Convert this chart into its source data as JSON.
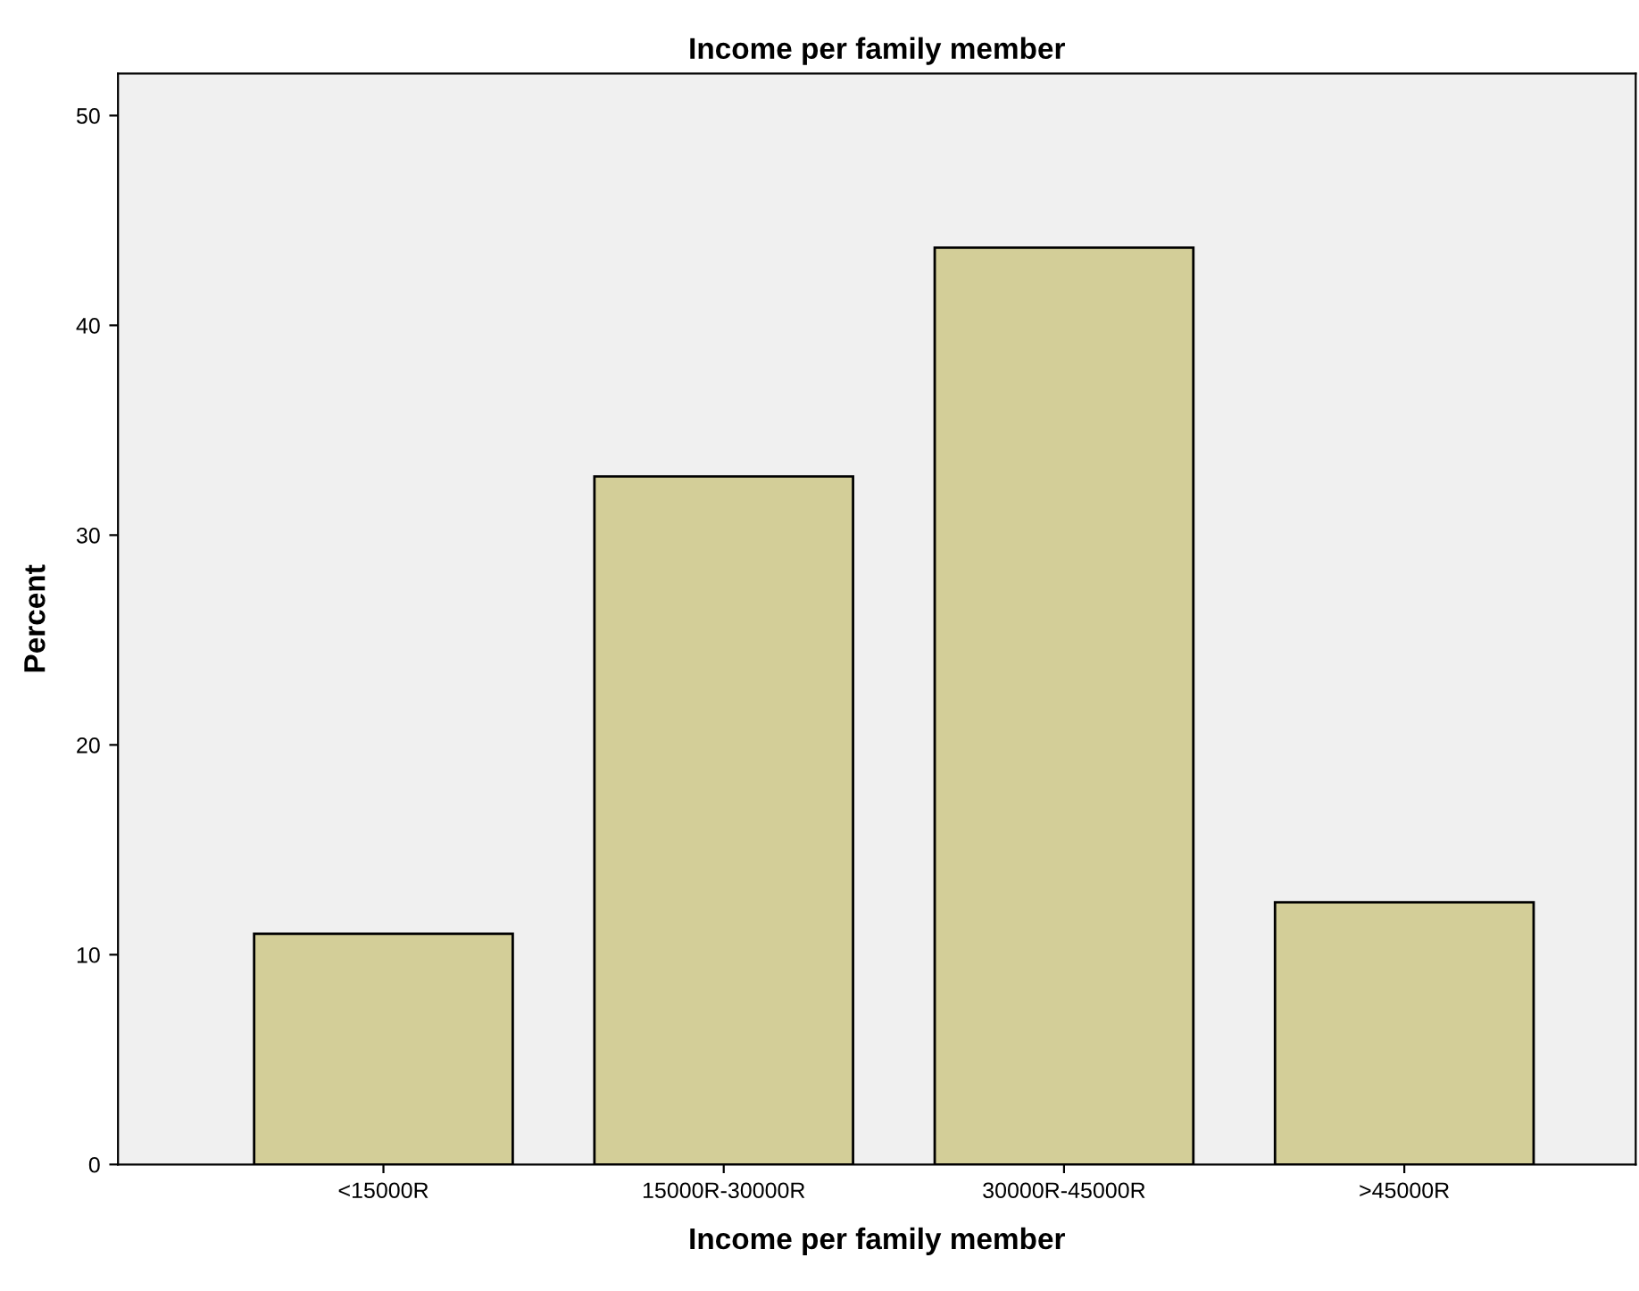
{
  "chart_data": {
    "type": "bar",
    "title": "Income per family member",
    "xlabel": "Income per family member",
    "ylabel": "Percent",
    "categories": [
      "<15000R",
      "15000R-30000R",
      "30000R-45000R",
      ">45000R"
    ],
    "values": [
      11.0,
      32.8,
      43.7,
      12.5
    ],
    "color": "#d3ce98",
    "ylim": [
      0,
      52
    ],
    "yticks": [
      0,
      10,
      20,
      30,
      40,
      50
    ],
    "grid": false,
    "legend": false
  }
}
